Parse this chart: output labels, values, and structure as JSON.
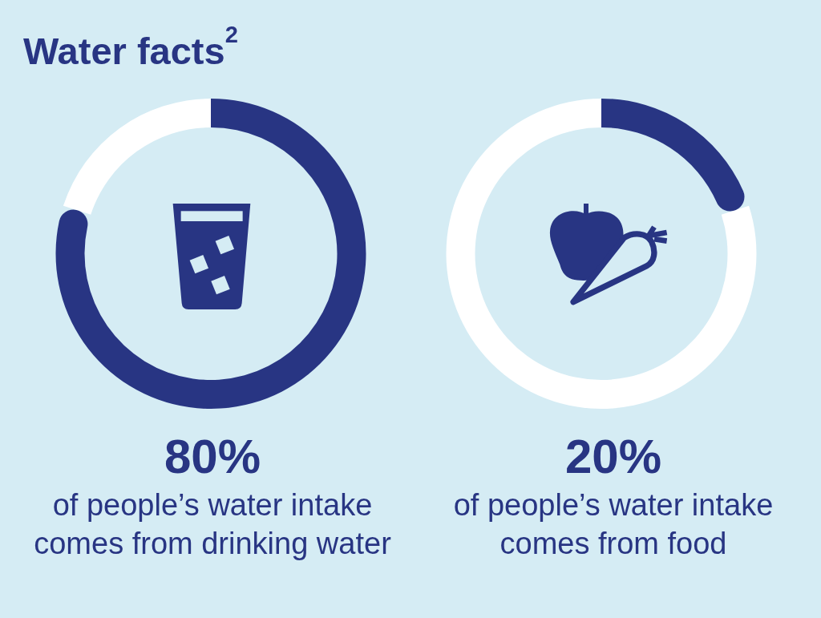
{
  "chart_data": [
    {
      "type": "donut",
      "title": "Water facts$^{2}$",
      "categories": [
        null,
        null
      ],
      "values": [
        80,
        20
      ],
      "colors": [
        "#283583",
        "#ffffff"
      ],
      "annotations": [
        "80%",
        "of people’s water intake comes from drinking water"
      ]
    },
    {
      "type": "donut",
      "categories": [
        null,
        null
      ],
      "values": [
        20,
        80
      ],
      "colors": [
        "#283583",
        "#ffffff"
      ],
      "annotations": [
        "20%",
        "of people’s water intake comes from food"
      ]
    }
  ]
}
